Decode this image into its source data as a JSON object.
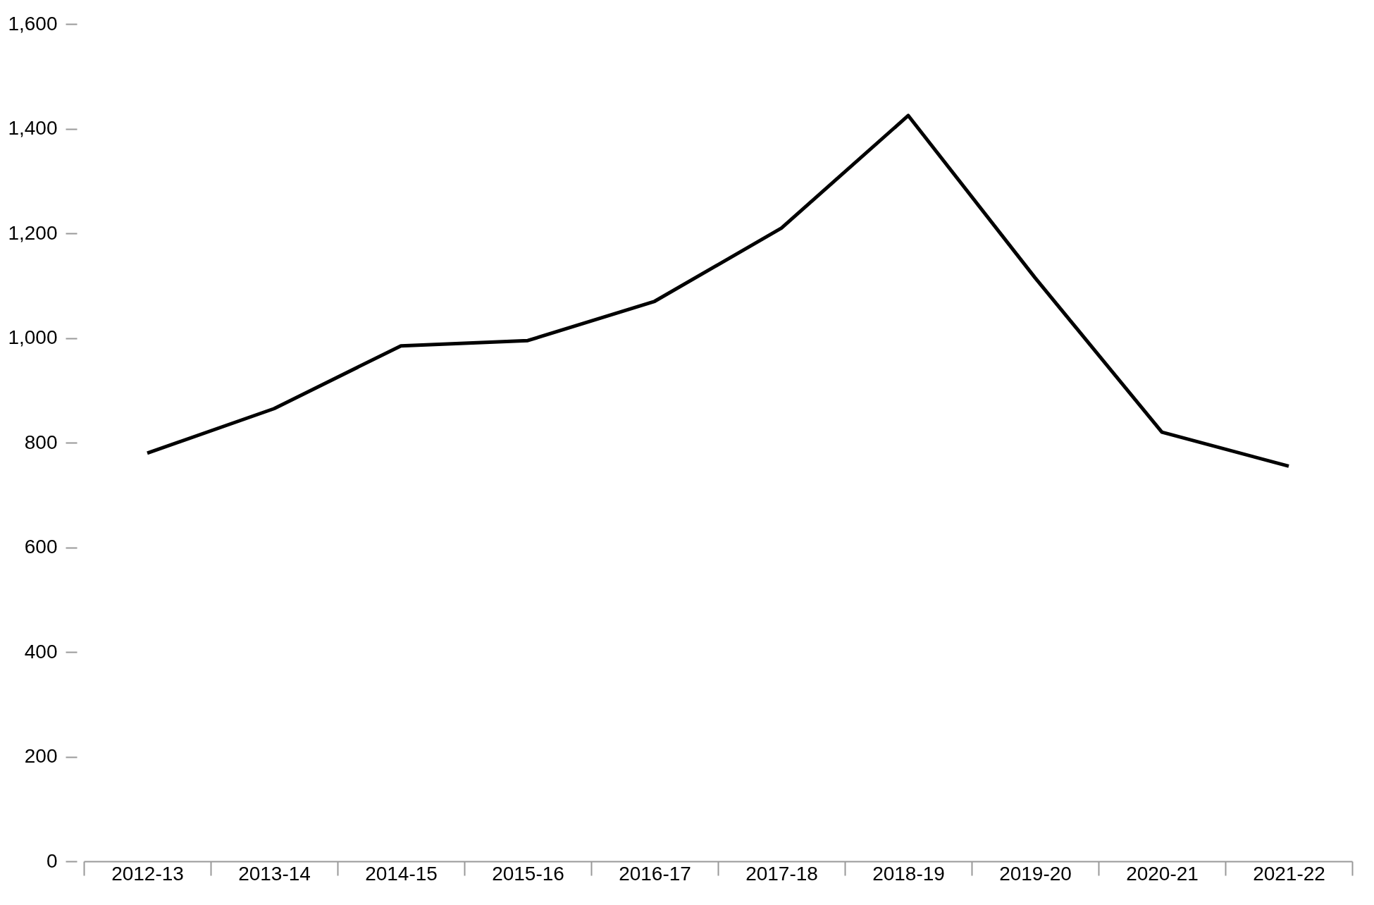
{
  "chart_data": {
    "type": "line",
    "categories": [
      "2012-13",
      "2013-14",
      "2014-15",
      "2015-16",
      "2016-17",
      "2017-18",
      "2018-19",
      "2019-20",
      "2020-21",
      "2021-22"
    ],
    "series": [
      {
        "color": "#000000",
        "values": [
          780,
          865,
          985,
          995,
          1070,
          1210,
          1425,
          1115,
          820,
          755
        ]
      }
    ],
    "ylim": [
      0,
      1600
    ],
    "yticks": [
      0,
      {
        "value": 200,
        "label": "200"
      },
      {
        "value": 400,
        "label": "400"
      },
      {
        "value": 600,
        "label": "600"
      },
      {
        "value": 800,
        "label": "800"
      },
      {
        "value": 1000,
        "label": "1,000"
      },
      {
        "value": 1200,
        "label": "1,200"
      },
      {
        "value": 1400,
        "label": "1,400"
      },
      {
        "value": 1600,
        "label": "1,600"
      }
    ],
    "grid": false,
    "legend": false,
    "marker": "none",
    "line_style": "solid"
  }
}
